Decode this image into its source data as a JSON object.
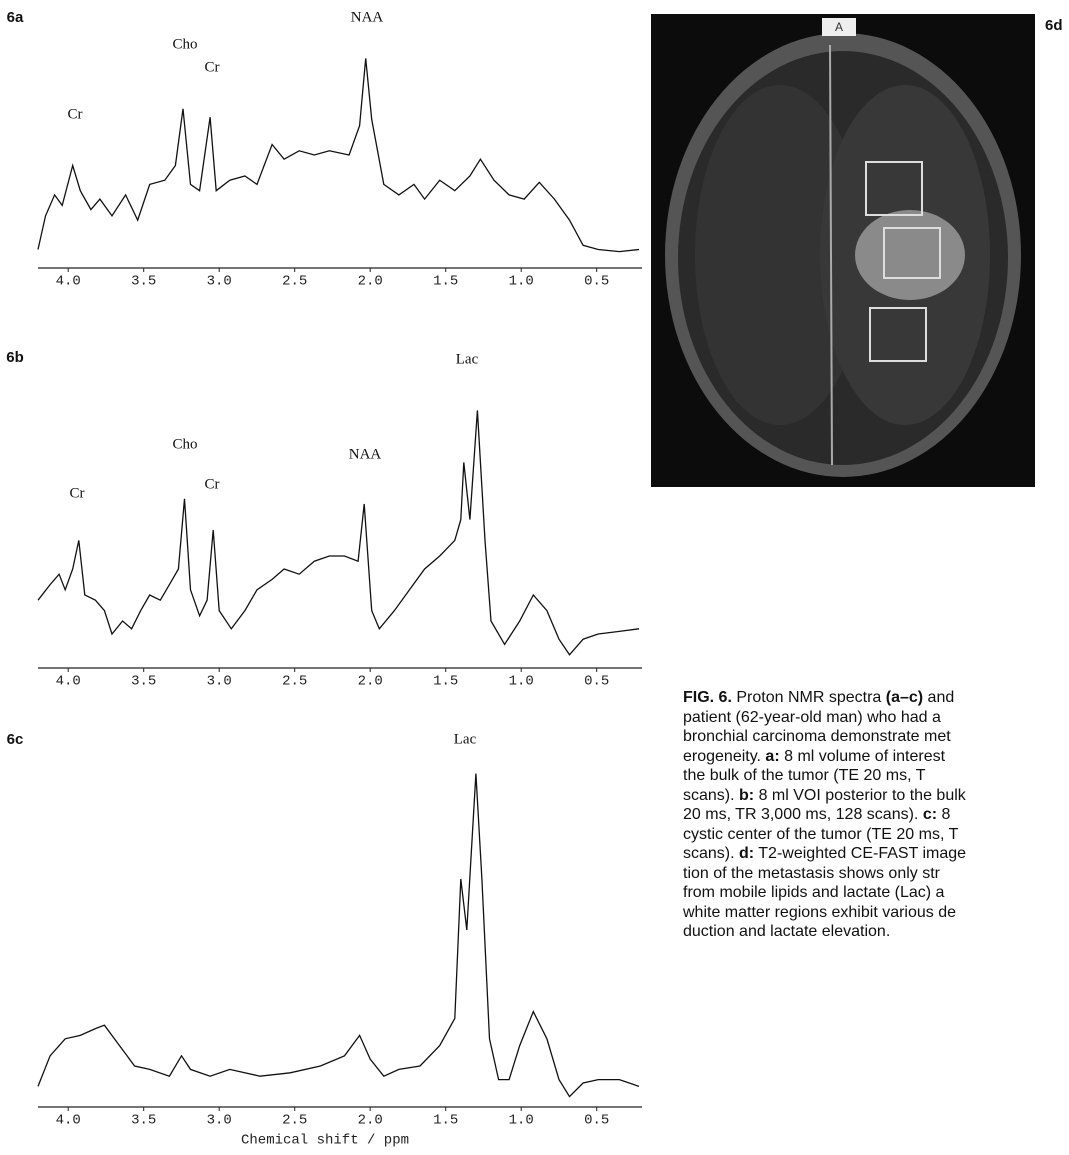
{
  "chart_data": [
    {
      "type": "line",
      "panel_label": "6a",
      "xlim": [
        4.2,
        0.2
      ],
      "ylim": [
        0,
        100
      ],
      "color": "#111111",
      "xticks": [
        {
          "value": 4,
          "label": "4.0"
        },
        3.5,
        {
          "value": 3,
          "label": "3.0"
        },
        2.5,
        {
          "value": 2,
          "label": "2.0"
        },
        1.5,
        {
          "value": 1,
          "label": "1.0"
        },
        0.5
      ],
      "annotations": [
        "Cr",
        "Cho",
        "Cr",
        "NAA"
      ],
      "x": [
        4.2,
        4.15,
        4.09,
        4.04,
        3.97,
        3.92,
        3.85,
        3.79,
        3.71,
        3.62,
        3.54,
        3.46,
        3.36,
        3.29,
        3.24,
        3.19,
        3.13,
        3.06,
        3.02,
        2.93,
        2.83,
        2.75,
        2.65,
        2.57,
        2.47,
        2.37,
        2.27,
        2.14,
        2.07,
        2.03,
        1.99,
        1.91,
        1.81,
        1.71,
        1.64,
        1.54,
        1.44,
        1.34,
        1.27,
        1.18,
        1.08,
        0.98,
        0.88,
        0.78,
        0.68,
        0.59,
        0.49,
        0.35,
        0.22
      ],
      "values": [
        5,
        21,
        31,
        26,
        45,
        33,
        24,
        29,
        21,
        31,
        19,
        36,
        38,
        45,
        72,
        36,
        33,
        68,
        33,
        38,
        40,
        36,
        55,
        48,
        52,
        50,
        52,
        50,
        64,
        96,
        67,
        36,
        31,
        36,
        29,
        38,
        33,
        40,
        48,
        38,
        31,
        29,
        37,
        29,
        19,
        7,
        5,
        4,
        5
      ]
    },
    {
      "type": "line",
      "panel_label": "6b",
      "xlim": [
        4.2,
        0.2
      ],
      "ylim": [
        0,
        100
      ],
      "color": "#111111",
      "xticks": [
        {
          "value": 4,
          "label": "4.0"
        },
        3.5,
        {
          "value": 3,
          "label": "3.0"
        },
        2.5,
        {
          "value": 2,
          "label": "2.0"
        },
        1.5,
        {
          "value": 1,
          "label": "1.0"
        },
        0.5
      ],
      "annotations": [
        "Lac",
        "Cho",
        "Cr",
        "NAA",
        "Cr"
      ],
      "x": [
        4.2,
        4.12,
        4.06,
        4.02,
        3.97,
        3.93,
        3.89,
        3.82,
        3.76,
        3.71,
        3.64,
        3.58,
        3.52,
        3.46,
        3.39,
        3.31,
        3.27,
        3.23,
        3.19,
        3.13,
        3.08,
        3.04,
        3.0,
        2.92,
        2.83,
        2.75,
        2.65,
        2.57,
        2.47,
        2.37,
        2.27,
        2.17,
        2.08,
        2.04,
        1.99,
        1.94,
        1.84,
        1.74,
        1.64,
        1.54,
        1.44,
        1.4,
        1.38,
        1.34,
        1.29,
        1.24,
        1.2,
        1.11,
        1.01,
        0.92,
        0.83,
        0.75,
        0.68,
        0.59,
        0.49,
        0.35,
        0.22
      ],
      "values": [
        23,
        29,
        33,
        27,
        35,
        46,
        25,
        23,
        19,
        10,
        15,
        12,
        19,
        25,
        23,
        31,
        35,
        62,
        27,
        17,
        23,
        50,
        19,
        12,
        19,
        27,
        31,
        35,
        33,
        38,
        40,
        40,
        38,
        60,
        19,
        12,
        19,
        27,
        35,
        40,
        46,
        54,
        76,
        54,
        96,
        46,
        15,
        6,
        15,
        25,
        19,
        8,
        2,
        8,
        10,
        11,
        12
      ]
    },
    {
      "type": "line",
      "panel_label": "6c",
      "xlabel": "Chemical shift / ppm",
      "xlim": [
        4.2,
        0.2
      ],
      "ylim": [
        0,
        100
      ],
      "color": "#111111",
      "xticks": [
        {
          "value": 4,
          "label": "4.0"
        },
        3.5,
        {
          "value": 3,
          "label": "3.0"
        },
        2.5,
        {
          "value": 2,
          "label": "2.0"
        },
        1.5,
        {
          "value": 1,
          "label": "1.0"
        },
        0.5
      ],
      "annotations": [
        "Lac"
      ],
      "x": [
        4.2,
        4.12,
        4.02,
        3.92,
        3.82,
        3.76,
        3.66,
        3.56,
        3.46,
        3.33,
        3.25,
        3.19,
        3.06,
        2.93,
        2.73,
        2.53,
        2.33,
        2.17,
        2.07,
        2.0,
        1.91,
        1.81,
        1.67,
        1.54,
        1.44,
        1.4,
        1.36,
        1.3,
        1.26,
        1.21,
        1.15,
        1.08,
        1.01,
        0.92,
        0.83,
        0.75,
        0.68,
        0.59,
        0.49,
        0.35,
        0.22
      ],
      "values": [
        4,
        13,
        18,
        19,
        21,
        22,
        16,
        10,
        9,
        7,
        13,
        9,
        7,
        9,
        7,
        8,
        10,
        13,
        19,
        12,
        7,
        9,
        10,
        16,
        24,
        65,
        50,
        96,
        65,
        18,
        6,
        6,
        16,
        26,
        18,
        6,
        1,
        5,
        6,
        6,
        4
      ]
    }
  ],
  "image": {
    "label": "6d",
    "marker": "A"
  },
  "caption": [
    [
      {
        "text": "FIG. 6.",
        "bold": true
      },
      {
        "text": " Proton NMR spectra "
      },
      {
        "text": "(a–c)",
        "bold": true
      },
      {
        "text": " and"
      }
    ],
    [
      {
        "text": "patient (62-year-old man) who had a"
      }
    ],
    [
      {
        "text": "bronchial carcinoma demonstrate met"
      }
    ],
    [
      {
        "text": "erogeneity. "
      },
      {
        "text": "a:",
        "bold": true
      },
      {
        "text": " 8 ml volume of interest"
      }
    ],
    [
      {
        "text": "the bulk of the tumor (TE 20 ms, T"
      }
    ],
    [
      {
        "text": "scans). "
      },
      {
        "text": "b:",
        "bold": true
      },
      {
        "text": " 8 ml VOI posterior to the bulk"
      }
    ],
    [
      {
        "text": "20 ms, TR 3,000 ms, 128 scans). "
      },
      {
        "text": "c:",
        "bold": true
      },
      {
        "text": " 8"
      }
    ],
    [
      {
        "text": "cystic center of the tumor (TE 20 ms, T"
      }
    ],
    [
      {
        "text": "scans). "
      },
      {
        "text": "d:",
        "bold": true
      },
      {
        "text": " T2-weighted CE-FAST image"
      }
    ],
    [
      {
        "text": "tion of the metastasis shows only str"
      }
    ],
    [
      {
        "text": "from mobile lipids and lactate (Lac) a"
      }
    ],
    [
      {
        "text": "white matter regions exhibit various de"
      }
    ],
    [
      {
        "text": "duction and lactate elevation."
      }
    ]
  ]
}
